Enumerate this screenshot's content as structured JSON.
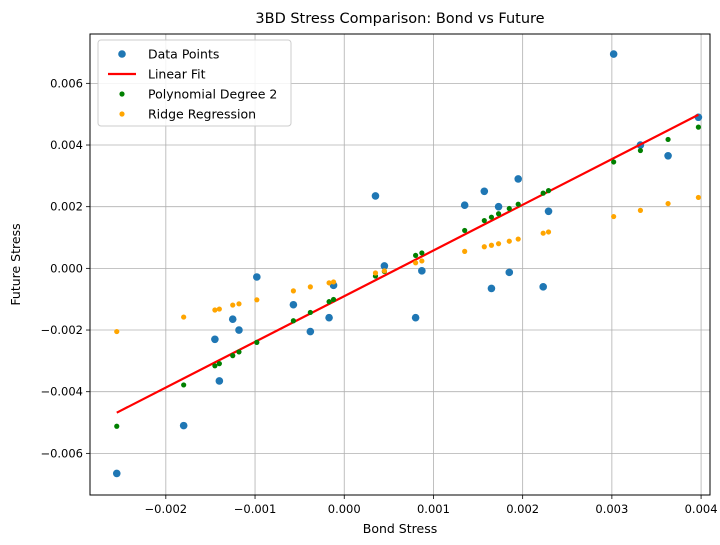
{
  "chart_data": {
    "type": "scatter",
    "title": "3BD Stress Comparison: Bond vs Future",
    "xlabel": "Bond Stress",
    "ylabel": "Future Stress",
    "xlim": [
      -0.00285,
      0.0041
    ],
    "ylim": [
      -0.00735,
      0.0076
    ],
    "xticks": [
      -0.002,
      -0.001,
      0.0,
      0.001,
      0.002,
      0.003,
      0.004
    ],
    "xtick_labels": [
      "−0.002",
      "−0.001",
      "0.000",
      "0.001",
      "0.002",
      "0.003",
      "0.004"
    ],
    "yticks": [
      -0.006,
      -0.004,
      -0.002,
      0.0,
      0.002,
      0.004,
      0.006
    ],
    "ytick_labels": [
      "−0.006",
      "−0.004",
      "−0.002",
      "0.000",
      "0.002",
      "0.004",
      "0.006"
    ],
    "grid": true,
    "legend_position": "top-left",
    "series": [
      {
        "name": "Data Points",
        "kind": "scatter",
        "color": "#1f77b4",
        "points": [
          [
            -0.00255,
            -0.00665
          ],
          [
            -0.0018,
            -0.0051
          ],
          [
            -0.00145,
            -0.0023
          ],
          [
            -0.0014,
            -0.00365
          ],
          [
            -0.00125,
            -0.00165
          ],
          [
            -0.00118,
            -0.002
          ],
          [
            -0.00098,
            -0.00028
          ],
          [
            -0.00057,
            -0.00118
          ],
          [
            -0.00038,
            -0.00205
          ],
          [
            -0.00017,
            -0.0016
          ],
          [
            -0.00012,
            -0.00055
          ],
          [
            0.00035,
            0.00235
          ],
          [
            0.00045,
            8e-05
          ],
          [
            0.0008,
            -0.0016
          ],
          [
            0.00087,
            -8e-05
          ],
          [
            0.00135,
            0.00205
          ],
          [
            0.00157,
            0.0025
          ],
          [
            0.00165,
            -0.00065
          ],
          [
            0.00173,
            0.002
          ],
          [
            0.00185,
            -0.00013
          ],
          [
            0.00195,
            0.0029
          ],
          [
            0.00223,
            -0.0006
          ],
          [
            0.00229,
            0.00185
          ],
          [
            0.00302,
            0.00695
          ],
          [
            0.00332,
            0.004
          ],
          [
            0.00363,
            0.00365
          ],
          [
            0.00397,
            0.0049
          ]
        ]
      },
      {
        "name": "Linear Fit",
        "kind": "line",
        "color": "#ff0000",
        "points": [
          [
            -0.00255,
            -0.00468
          ],
          [
            0.00397,
            0.00498
          ]
        ]
      },
      {
        "name": "Polynomial Degree 2",
        "kind": "scatter",
        "color": "#008000",
        "points": [
          [
            -0.00255,
            -0.00512
          ],
          [
            -0.0018,
            -0.00378
          ],
          [
            -0.00145,
            -0.00316
          ],
          [
            -0.0014,
            -0.00309
          ],
          [
            -0.00125,
            -0.00283
          ],
          [
            -0.00118,
            -0.00271
          ],
          [
            -0.00098,
            -0.0024
          ],
          [
            -0.00057,
            -0.0017
          ],
          [
            -0.00038,
            -0.00143
          ],
          [
            -0.00017,
            -0.00108
          ],
          [
            -0.00012,
            -0.00101
          ],
          [
            0.00035,
            -0.00025
          ],
          [
            0.00045,
            -0.0001
          ],
          [
            0.0008,
            0.00042
          ],
          [
            0.00087,
            0.0005
          ],
          [
            0.00135,
            0.00123
          ],
          [
            0.00157,
            0.00155
          ],
          [
            0.00165,
            0.00166
          ],
          [
            0.00173,
            0.00177
          ],
          [
            0.00185,
            0.00194
          ],
          [
            0.00195,
            0.00208
          ],
          [
            0.00223,
            0.00244
          ],
          [
            0.00229,
            0.00252
          ],
          [
            0.00302,
            0.00345
          ],
          [
            0.00332,
            0.00382
          ],
          [
            0.00363,
            0.00418
          ],
          [
            0.00397,
            0.00458
          ]
        ]
      },
      {
        "name": "Ridge Regression",
        "kind": "scatter",
        "color": "#ffa500",
        "points": [
          [
            -0.00255,
            -0.00205
          ],
          [
            -0.0018,
            -0.00158
          ],
          [
            -0.00145,
            -0.00135
          ],
          [
            -0.0014,
            -0.00132
          ],
          [
            -0.00125,
            -0.00119
          ],
          [
            -0.00118,
            -0.00115
          ],
          [
            -0.00098,
            -0.00102
          ],
          [
            -0.00057,
            -0.00073
          ],
          [
            -0.00038,
            -0.0006
          ],
          [
            -0.00017,
            -0.00047
          ],
          [
            -0.00012,
            -0.00044
          ],
          [
            0.00035,
            -0.00015
          ],
          [
            0.00045,
            -8e-05
          ],
          [
            0.0008,
            0.00018
          ],
          [
            0.00087,
            0.00024
          ],
          [
            0.00135,
            0.00055
          ],
          [
            0.00157,
            0.0007
          ],
          [
            0.00165,
            0.00075
          ],
          [
            0.00173,
            0.0008
          ],
          [
            0.00185,
            0.00088
          ],
          [
            0.00195,
            0.00095
          ],
          [
            0.00223,
            0.00114
          ],
          [
            0.00229,
            0.00118
          ],
          [
            0.00302,
            0.00168
          ],
          [
            0.00332,
            0.00188
          ],
          [
            0.00363,
            0.0021
          ],
          [
            0.00397,
            0.0023
          ]
        ]
      }
    ]
  }
}
